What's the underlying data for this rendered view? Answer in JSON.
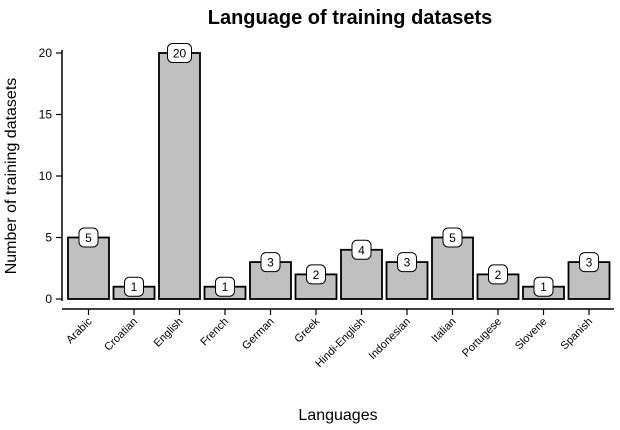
{
  "chart_data": {
    "type": "bar",
    "title": "Language of training datasets",
    "xlabel": "Languages",
    "ylabel": "Number of training datasets",
    "categories": [
      "Arabic",
      "Croatian",
      "English",
      "French",
      "German",
      "Greek",
      "Hindi-English",
      "Indonesian",
      "Italian",
      "Portugese",
      "Slovene",
      "Spanish"
    ],
    "values": [
      5,
      1,
      20,
      1,
      3,
      2,
      4,
      3,
      5,
      2,
      1,
      3
    ],
    "data_labels": [
      "5",
      "1",
      "20",
      "1",
      "3",
      "2",
      "4",
      "3",
      "5",
      "2",
      "1",
      "3"
    ],
    "ylim": [
      0,
      20
    ],
    "yticks": [
      0,
      5,
      10,
      15,
      20
    ],
    "ytick_labels": [
      "0",
      "5",
      "10",
      "15",
      "20"
    ],
    "grid": false,
    "legend": "none",
    "colors": {
      "bar_fill": "#c0c0c0",
      "bar_stroke": "#000000",
      "label_box": "#ffffff"
    }
  }
}
